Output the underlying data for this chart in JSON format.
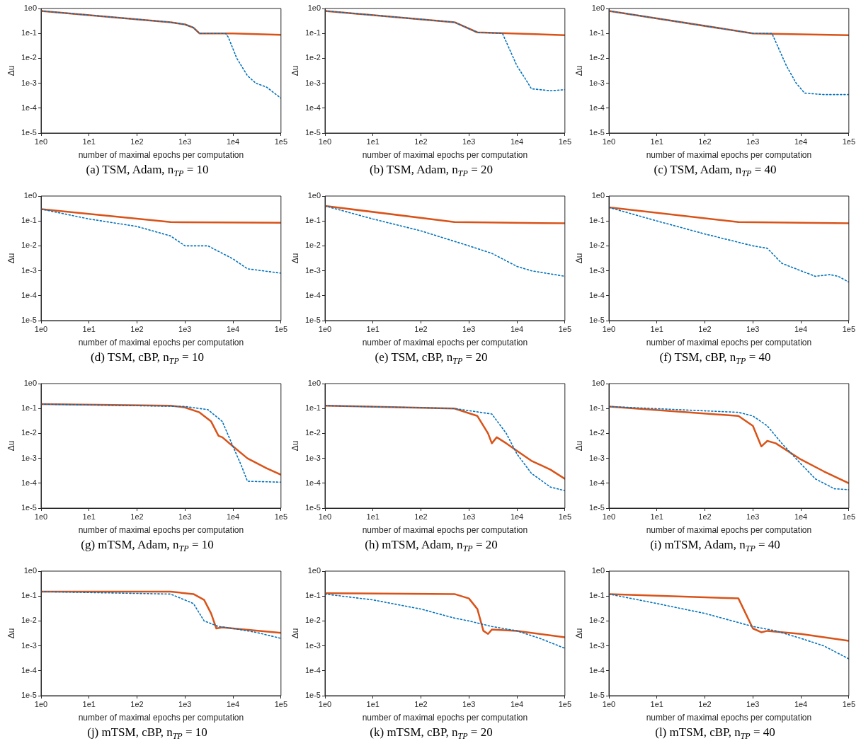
{
  "chart_data": [
    {
      "type": "line",
      "title": "(a) TSM, Adam, n$_{TP}$ = 10",
      "xlabel": "number of maximal epochs per computation",
      "ylabel": "Δu",
      "log": "xy",
      "grid": false,
      "xlim": [
        1,
        100000
      ],
      "ylim": [
        1e-05,
        1
      ],
      "xticks": [
        {
          "value": 1,
          "label": "1e0"
        },
        {
          "value": 10,
          "label": "1e1"
        },
        {
          "value": 100,
          "label": "1e2"
        },
        {
          "value": 1000,
          "label": "1e3"
        },
        {
          "value": 10000,
          "label": "1e4"
        },
        {
          "value": 100000,
          "label": "1e5"
        }
      ],
      "yticks": [
        {
          "value": 1e-05,
          "label": "1e-5"
        },
        {
          "value": 0.0001,
          "label": "1e-4"
        },
        {
          "value": 0.001,
          "label": "1e-3"
        },
        {
          "value": 0.01,
          "label": "1e-2"
        },
        {
          "value": 0.1,
          "label": "1e-1"
        },
        {
          "value": 1,
          "label": "1e0"
        }
      ],
      "series": [
        {
          "color": "#0072bd",
          "line_style": "dotted",
          "x": [
            1,
            500,
            1000,
            1500,
            2000,
            3000,
            7000,
            8000,
            12000,
            20000,
            30000,
            50000,
            100000
          ],
          "values": [
            0.8,
            0.28,
            0.23,
            0.17,
            0.1,
            0.1,
            0.1,
            0.07,
            0.01,
            0.002,
            0.001,
            0.0007,
            0.00025
          ]
        },
        {
          "color": "#d95319",
          "line_style": "solid",
          "x": [
            1,
            500,
            1000,
            1500,
            2000,
            3000,
            10000,
            100000
          ],
          "values": [
            0.8,
            0.28,
            0.23,
            0.17,
            0.1,
            0.1,
            0.1,
            0.088
          ]
        }
      ]
    },
    {
      "type": "line",
      "title": "(b) TSM, Adam, n$_{TP}$ = 20",
      "xlabel": "number of maximal epochs per computation",
      "ylabel": "Δu",
      "log": "xy",
      "grid": false,
      "xlim": [
        1,
        100000
      ],
      "ylim": [
        1e-05,
        1
      ],
      "xticks": [
        {
          "value": 1,
          "label": "1e0"
        },
        {
          "value": 10,
          "label": "1e1"
        },
        {
          "value": 100,
          "label": "1e2"
        },
        {
          "value": 1000,
          "label": "1e3"
        },
        {
          "value": 10000,
          "label": "1e4"
        },
        {
          "value": 100000,
          "label": "1e5"
        }
      ],
      "yticks": [
        {
          "value": 1e-05,
          "label": "1e-5"
        },
        {
          "value": 0.0001,
          "label": "1e-4"
        },
        {
          "value": 0.001,
          "label": "1e-3"
        },
        {
          "value": 0.01,
          "label": "1e-2"
        },
        {
          "value": 0.1,
          "label": "1e-1"
        },
        {
          "value": 1,
          "label": "1e0"
        }
      ],
      "series": [
        {
          "color": "#0072bd",
          "line_style": "dotted",
          "x": [
            1,
            500,
            1500,
            5000,
            10000,
            15000,
            20000,
            50000,
            100000
          ],
          "values": [
            0.8,
            0.28,
            0.11,
            0.1,
            0.005,
            0.0015,
            0.0006,
            0.0005,
            0.00055
          ]
        },
        {
          "color": "#d95319",
          "line_style": "solid",
          "x": [
            1,
            500,
            1500,
            100000
          ],
          "values": [
            0.8,
            0.28,
            0.11,
            0.085
          ]
        }
      ]
    },
    {
      "type": "line",
      "title": "(c) TSM, Adam, n$_{TP}$ = 40",
      "xlabel": "number of maximal epochs per computation",
      "ylabel": "Δu",
      "log": "xy",
      "grid": false,
      "xlim": [
        1,
        100000
      ],
      "ylim": [
        1e-05,
        1
      ],
      "xticks": [
        {
          "value": 1,
          "label": "1e0"
        },
        {
          "value": 10,
          "label": "1e1"
        },
        {
          "value": 100,
          "label": "1e2"
        },
        {
          "value": 1000,
          "label": "1e3"
        },
        {
          "value": 10000,
          "label": "1e4"
        },
        {
          "value": 100000,
          "label": "1e5"
        }
      ],
      "yticks": [
        {
          "value": 1e-05,
          "label": "1e-5"
        },
        {
          "value": 0.0001,
          "label": "1e-4"
        },
        {
          "value": 0.001,
          "label": "1e-3"
        },
        {
          "value": 0.01,
          "label": "1e-2"
        },
        {
          "value": 0.1,
          "label": "1e-1"
        },
        {
          "value": 1,
          "label": "1e0"
        }
      ],
      "series": [
        {
          "color": "#0072bd",
          "line_style": "dotted",
          "x": [
            1,
            1000,
            2500,
            5000,
            8000,
            12000,
            30000,
            100000
          ],
          "values": [
            0.8,
            0.1,
            0.1,
            0.005,
            0.001,
            0.0004,
            0.00035,
            0.00035
          ]
        },
        {
          "color": "#d95319",
          "line_style": "solid",
          "x": [
            1,
            1000,
            100000
          ],
          "values": [
            0.8,
            0.1,
            0.085
          ]
        }
      ]
    },
    {
      "type": "line",
      "title": "(d) TSM, cBP, n$_{TP}$ = 10",
      "xlabel": "number of maximal epochs per computation",
      "ylabel": "Δu",
      "log": "xy",
      "grid": false,
      "xlim": [
        1,
        100000
      ],
      "ylim": [
        1e-05,
        1
      ],
      "xticks": [
        {
          "value": 1,
          "label": "1e0"
        },
        {
          "value": 10,
          "label": "1e1"
        },
        {
          "value": 100,
          "label": "1e2"
        },
        {
          "value": 1000,
          "label": "1e3"
        },
        {
          "value": 10000,
          "label": "1e4"
        },
        {
          "value": 100000,
          "label": "1e5"
        }
      ],
      "yticks": [
        {
          "value": 1e-05,
          "label": "1e-5"
        },
        {
          "value": 0.0001,
          "label": "1e-4"
        },
        {
          "value": 0.001,
          "label": "1e-3"
        },
        {
          "value": 0.01,
          "label": "1e-2"
        },
        {
          "value": 0.1,
          "label": "1e-1"
        },
        {
          "value": 1,
          "label": "1e0"
        }
      ],
      "series": [
        {
          "color": "#0072bd",
          "line_style": "dotted",
          "x": [
            1,
            10,
            100,
            500,
            1000,
            3000,
            10000,
            20000,
            100000
          ],
          "values": [
            0.3,
            0.12,
            0.06,
            0.025,
            0.01,
            0.01,
            0.003,
            0.0012,
            0.0008
          ]
        },
        {
          "color": "#d95319",
          "line_style": "solid",
          "x": [
            1,
            500,
            100000
          ],
          "values": [
            0.3,
            0.09,
            0.085
          ]
        }
      ]
    },
    {
      "type": "line",
      "title": "(e) TSM, cBP, n$_{TP}$ = 20",
      "xlabel": "number of maximal epochs per computation",
      "ylabel": "Δu",
      "log": "xy",
      "grid": false,
      "xlim": [
        1,
        100000
      ],
      "ylim": [
        1e-05,
        1
      ],
      "xticks": [
        {
          "value": 1,
          "label": "1e0"
        },
        {
          "value": 10,
          "label": "1e1"
        },
        {
          "value": 100,
          "label": "1e2"
        },
        {
          "value": 1000,
          "label": "1e3"
        },
        {
          "value": 10000,
          "label": "1e4"
        },
        {
          "value": 100000,
          "label": "1e5"
        }
      ],
      "yticks": [
        {
          "value": 1e-05,
          "label": "1e-5"
        },
        {
          "value": 0.0001,
          "label": "1e-4"
        },
        {
          "value": 0.001,
          "label": "1e-3"
        },
        {
          "value": 0.01,
          "label": "1e-2"
        },
        {
          "value": 0.1,
          "label": "1e-1"
        },
        {
          "value": 1,
          "label": "1e0"
        }
      ],
      "series": [
        {
          "color": "#0072bd",
          "line_style": "dotted",
          "x": [
            1,
            10,
            100,
            1000,
            3000,
            10000,
            20000,
            100000
          ],
          "values": [
            0.4,
            0.12,
            0.04,
            0.01,
            0.005,
            0.0015,
            0.001,
            0.0006
          ]
        },
        {
          "color": "#d95319",
          "line_style": "solid",
          "x": [
            1,
            500,
            100000
          ],
          "values": [
            0.4,
            0.09,
            0.08
          ]
        }
      ]
    },
    {
      "type": "line",
      "title": "(f) TSM, cBP, n$_{TP}$ = 40",
      "xlabel": "number of maximal epochs per computation",
      "ylabel": "Δu",
      "log": "xy",
      "grid": false,
      "xlim": [
        1,
        100000
      ],
      "ylim": [
        1e-05,
        1
      ],
      "xticks": [
        {
          "value": 1,
          "label": "1e0"
        },
        {
          "value": 10,
          "label": "1e1"
        },
        {
          "value": 100,
          "label": "1e2"
        },
        {
          "value": 1000,
          "label": "1e3"
        },
        {
          "value": 10000,
          "label": "1e4"
        },
        {
          "value": 100000,
          "label": "1e5"
        }
      ],
      "yticks": [
        {
          "value": 1e-05,
          "label": "1e-5"
        },
        {
          "value": 0.0001,
          "label": "1e-4"
        },
        {
          "value": 0.001,
          "label": "1e-3"
        },
        {
          "value": 0.01,
          "label": "1e-2"
        },
        {
          "value": 0.1,
          "label": "1e-1"
        },
        {
          "value": 1,
          "label": "1e0"
        }
      ],
      "series": [
        {
          "color": "#0072bd",
          "line_style": "dotted",
          "x": [
            1,
            10,
            100,
            1000,
            2000,
            4000,
            10000,
            20000,
            40000,
            60000,
            100000
          ],
          "values": [
            0.35,
            0.1,
            0.03,
            0.01,
            0.008,
            0.002,
            0.001,
            0.0006,
            0.0007,
            0.0006,
            0.00035
          ]
        },
        {
          "color": "#d95319",
          "line_style": "solid",
          "x": [
            1,
            500,
            100000
          ],
          "values": [
            0.35,
            0.09,
            0.08
          ]
        }
      ]
    },
    {
      "type": "line",
      "title": "(g) mTSM, Adam, n$_{TP}$ = 10",
      "xlabel": "number of maximal epochs per computation",
      "ylabel": "Δu",
      "log": "xy",
      "grid": false,
      "xlim": [
        1,
        100000
      ],
      "ylim": [
        1e-05,
        1
      ],
      "xticks": [
        {
          "value": 1,
          "label": "1e0"
        },
        {
          "value": 10,
          "label": "1e1"
        },
        {
          "value": 100,
          "label": "1e2"
        },
        {
          "value": 1000,
          "label": "1e3"
        },
        {
          "value": 10000,
          "label": "1e4"
        },
        {
          "value": 100000,
          "label": "1e5"
        }
      ],
      "yticks": [
        {
          "value": 1e-05,
          "label": "1e-5"
        },
        {
          "value": 0.0001,
          "label": "1e-4"
        },
        {
          "value": 0.001,
          "label": "1e-3"
        },
        {
          "value": 0.01,
          "label": "1e-2"
        },
        {
          "value": 0.1,
          "label": "1e-1"
        },
        {
          "value": 1,
          "label": "1e0"
        }
      ],
      "series": [
        {
          "color": "#0072bd",
          "line_style": "dotted",
          "x": [
            1,
            1000,
            3000,
            6000,
            10000,
            15000,
            20000,
            100000
          ],
          "values": [
            0.15,
            0.12,
            0.09,
            0.03,
            0.003,
            0.0005,
            0.00012,
            0.00011
          ]
        },
        {
          "color": "#d95319",
          "line_style": "solid",
          "x": [
            1,
            500,
            1000,
            2000,
            3500,
            5000,
            6000,
            10000,
            20000,
            50000,
            100000
          ],
          "values": [
            0.15,
            0.13,
            0.11,
            0.07,
            0.03,
            0.008,
            0.007,
            0.003,
            0.001,
            0.0004,
            0.00022
          ]
        }
      ]
    },
    {
      "type": "line",
      "title": "(h) mTSM, Adam, n$_{TP}$ = 20",
      "xlabel": "number of maximal epochs per computation",
      "ylabel": "Δu",
      "log": "xy",
      "grid": false,
      "xlim": [
        1,
        100000
      ],
      "ylim": [
        1e-05,
        1
      ],
      "xticks": [
        {
          "value": 1,
          "label": "1e0"
        },
        {
          "value": 10,
          "label": "1e1"
        },
        {
          "value": 100,
          "label": "1e2"
        },
        {
          "value": 1000,
          "label": "1e3"
        },
        {
          "value": 10000,
          "label": "1e4"
        },
        {
          "value": 100000,
          "label": "1e5"
        }
      ],
      "yticks": [
        {
          "value": 1e-05,
          "label": "1e-5"
        },
        {
          "value": 0.0001,
          "label": "1e-4"
        },
        {
          "value": 0.001,
          "label": "1e-3"
        },
        {
          "value": 0.01,
          "label": "1e-2"
        },
        {
          "value": 0.1,
          "label": "1e-1"
        },
        {
          "value": 1,
          "label": "1e0"
        }
      ],
      "series": [
        {
          "color": "#0072bd",
          "line_style": "dotted",
          "x": [
            1,
            500,
            3000,
            6000,
            10000,
            20000,
            50000,
            100000
          ],
          "values": [
            0.13,
            0.1,
            0.06,
            0.01,
            0.0015,
            0.00025,
            7e-05,
            5e-05
          ]
        },
        {
          "color": "#d95319",
          "line_style": "solid",
          "x": [
            1,
            500,
            1500,
            2500,
            3000,
            3800,
            6000,
            10000,
            20000,
            50000,
            100000
          ],
          "values": [
            0.13,
            0.1,
            0.05,
            0.01,
            0.004,
            0.007,
            0.004,
            0.002,
            0.0008,
            0.00035,
            0.00015
          ]
        }
      ]
    },
    {
      "type": "line",
      "title": "(i) mTSM, Adam, n$_{TP}$ = 40",
      "xlabel": "number of maximal epochs per computation",
      "ylabel": "Δu",
      "log": "xy",
      "grid": false,
      "xlim": [
        1,
        100000
      ],
      "ylim": [
        1e-05,
        1
      ],
      "xticks": [
        {
          "value": 1,
          "label": "1e0"
        },
        {
          "value": 10,
          "label": "1e1"
        },
        {
          "value": 100,
          "label": "1e2"
        },
        {
          "value": 1000,
          "label": "1e3"
        },
        {
          "value": 10000,
          "label": "1e4"
        },
        {
          "value": 100000,
          "label": "1e5"
        }
      ],
      "yticks": [
        {
          "value": 1e-05,
          "label": "1e-5"
        },
        {
          "value": 0.0001,
          "label": "1e-4"
        },
        {
          "value": 0.001,
          "label": "1e-3"
        },
        {
          "value": 0.01,
          "label": "1e-2"
        },
        {
          "value": 0.1,
          "label": "1e-1"
        },
        {
          "value": 1,
          "label": "1e0"
        }
      ],
      "series": [
        {
          "color": "#0072bd",
          "line_style": "dotted",
          "x": [
            1,
            500,
            1000,
            2000,
            4000,
            10000,
            20000,
            50000,
            100000
          ],
          "values": [
            0.12,
            0.07,
            0.05,
            0.02,
            0.004,
            0.0006,
            0.00015,
            6e-05,
            5.5e-05
          ]
        },
        {
          "color": "#d95319",
          "line_style": "solid",
          "x": [
            1,
            500,
            1000,
            1500,
            2000,
            3000,
            10000,
            30000,
            100000
          ],
          "values": [
            0.12,
            0.05,
            0.02,
            0.003,
            0.005,
            0.004,
            0.0009,
            0.0003,
            0.0001
          ]
        }
      ]
    },
    {
      "type": "line",
      "title": "(j) mTSM, cBP, n$_{TP}$ = 10",
      "xlabel": "number of maximal epochs per computation",
      "ylabel": "Δu",
      "log": "xy",
      "grid": false,
      "xlim": [
        1,
        100000
      ],
      "ylim": [
        1e-05,
        1
      ],
      "xticks": [
        {
          "value": 1,
          "label": "1e0"
        },
        {
          "value": 10,
          "label": "1e1"
        },
        {
          "value": 100,
          "label": "1e2"
        },
        {
          "value": 1000,
          "label": "1e3"
        },
        {
          "value": 10000,
          "label": "1e4"
        },
        {
          "value": 100000,
          "label": "1e5"
        }
      ],
      "yticks": [
        {
          "value": 1e-05,
          "label": "1e-5"
        },
        {
          "value": 0.0001,
          "label": "1e-4"
        },
        {
          "value": 0.001,
          "label": "1e-3"
        },
        {
          "value": 0.01,
          "label": "1e-2"
        },
        {
          "value": 0.1,
          "label": "1e-1"
        },
        {
          "value": 1,
          "label": "1e0"
        }
      ],
      "series": [
        {
          "color": "#0072bd",
          "line_style": "dotted",
          "x": [
            1,
            500,
            1500,
            2500,
            5000,
            10000,
            30000,
            100000
          ],
          "values": [
            0.15,
            0.12,
            0.05,
            0.01,
            0.006,
            0.005,
            0.0035,
            0.002
          ]
        },
        {
          "color": "#d95319",
          "line_style": "solid",
          "x": [
            1,
            500,
            1500,
            2500,
            3500,
            4500,
            6000,
            10000,
            100000
          ],
          "values": [
            0.15,
            0.15,
            0.12,
            0.07,
            0.02,
            0.005,
            0.0055,
            0.005,
            0.0033
          ]
        }
      ]
    },
    {
      "type": "line",
      "title": "(k) mTSM, cBP, n$_{TP}$ = 20",
      "xlabel": "number of maximal epochs per computation",
      "ylabel": "Δu",
      "log": "xy",
      "grid": false,
      "xlim": [
        1,
        100000
      ],
      "ylim": [
        1e-05,
        1
      ],
      "xticks": [
        {
          "value": 1,
          "label": "1e0"
        },
        {
          "value": 10,
          "label": "1e1"
        },
        {
          "value": 100,
          "label": "1e2"
        },
        {
          "value": 1000,
          "label": "1e3"
        },
        {
          "value": 10000,
          "label": "1e4"
        },
        {
          "value": 100000,
          "label": "1e5"
        }
      ],
      "yticks": [
        {
          "value": 1e-05,
          "label": "1e-5"
        },
        {
          "value": 0.0001,
          "label": "1e-4"
        },
        {
          "value": 0.001,
          "label": "1e-3"
        },
        {
          "value": 0.01,
          "label": "1e-2"
        },
        {
          "value": 0.1,
          "label": "1e-1"
        },
        {
          "value": 1,
          "label": "1e0"
        }
      ],
      "series": [
        {
          "color": "#0072bd",
          "line_style": "dotted",
          "x": [
            1,
            10,
            100,
            500,
            1000,
            3000,
            10000,
            30000,
            100000
          ],
          "values": [
            0.12,
            0.07,
            0.03,
            0.013,
            0.01,
            0.006,
            0.004,
            0.002,
            0.0008
          ]
        },
        {
          "color": "#d95319",
          "line_style": "solid",
          "x": [
            1,
            500,
            1000,
            1500,
            2000,
            2500,
            3000,
            10000,
            100000
          ],
          "values": [
            0.13,
            0.12,
            0.08,
            0.03,
            0.004,
            0.003,
            0.0045,
            0.004,
            0.0022
          ]
        }
      ]
    },
    {
      "type": "line",
      "title": "(l) mTSM, cBP, n$_{TP}$ = 40",
      "xlabel": "number of maximal epochs per computation",
      "ylabel": "Δu",
      "log": "xy",
      "grid": false,
      "xlim": [
        1,
        100000
      ],
      "ylim": [
        1e-05,
        1
      ],
      "xticks": [
        {
          "value": 1,
          "label": "1e0"
        },
        {
          "value": 10,
          "label": "1e1"
        },
        {
          "value": 100,
          "label": "1e2"
        },
        {
          "value": 1000,
          "label": "1e3"
        },
        {
          "value": 10000,
          "label": "1e4"
        },
        {
          "value": 100000,
          "label": "1e5"
        }
      ],
      "yticks": [
        {
          "value": 1e-05,
          "label": "1e-5"
        },
        {
          "value": 0.0001,
          "label": "1e-4"
        },
        {
          "value": 0.001,
          "label": "1e-3"
        },
        {
          "value": 0.01,
          "label": "1e-2"
        },
        {
          "value": 0.1,
          "label": "1e-1"
        },
        {
          "value": 1,
          "label": "1e0"
        }
      ],
      "series": [
        {
          "color": "#0072bd",
          "line_style": "dotted",
          "x": [
            1,
            10,
            100,
            1000,
            3000,
            10000,
            30000,
            100000
          ],
          "values": [
            0.12,
            0.05,
            0.02,
            0.006,
            0.004,
            0.002,
            0.001,
            0.0003
          ]
        },
        {
          "color": "#d95319",
          "line_style": "solid",
          "x": [
            1,
            500,
            1000,
            1500,
            2000,
            10000,
            100000
          ],
          "values": [
            0.12,
            0.08,
            0.005,
            0.0035,
            0.004,
            0.003,
            0.0016
          ]
        }
      ]
    }
  ]
}
